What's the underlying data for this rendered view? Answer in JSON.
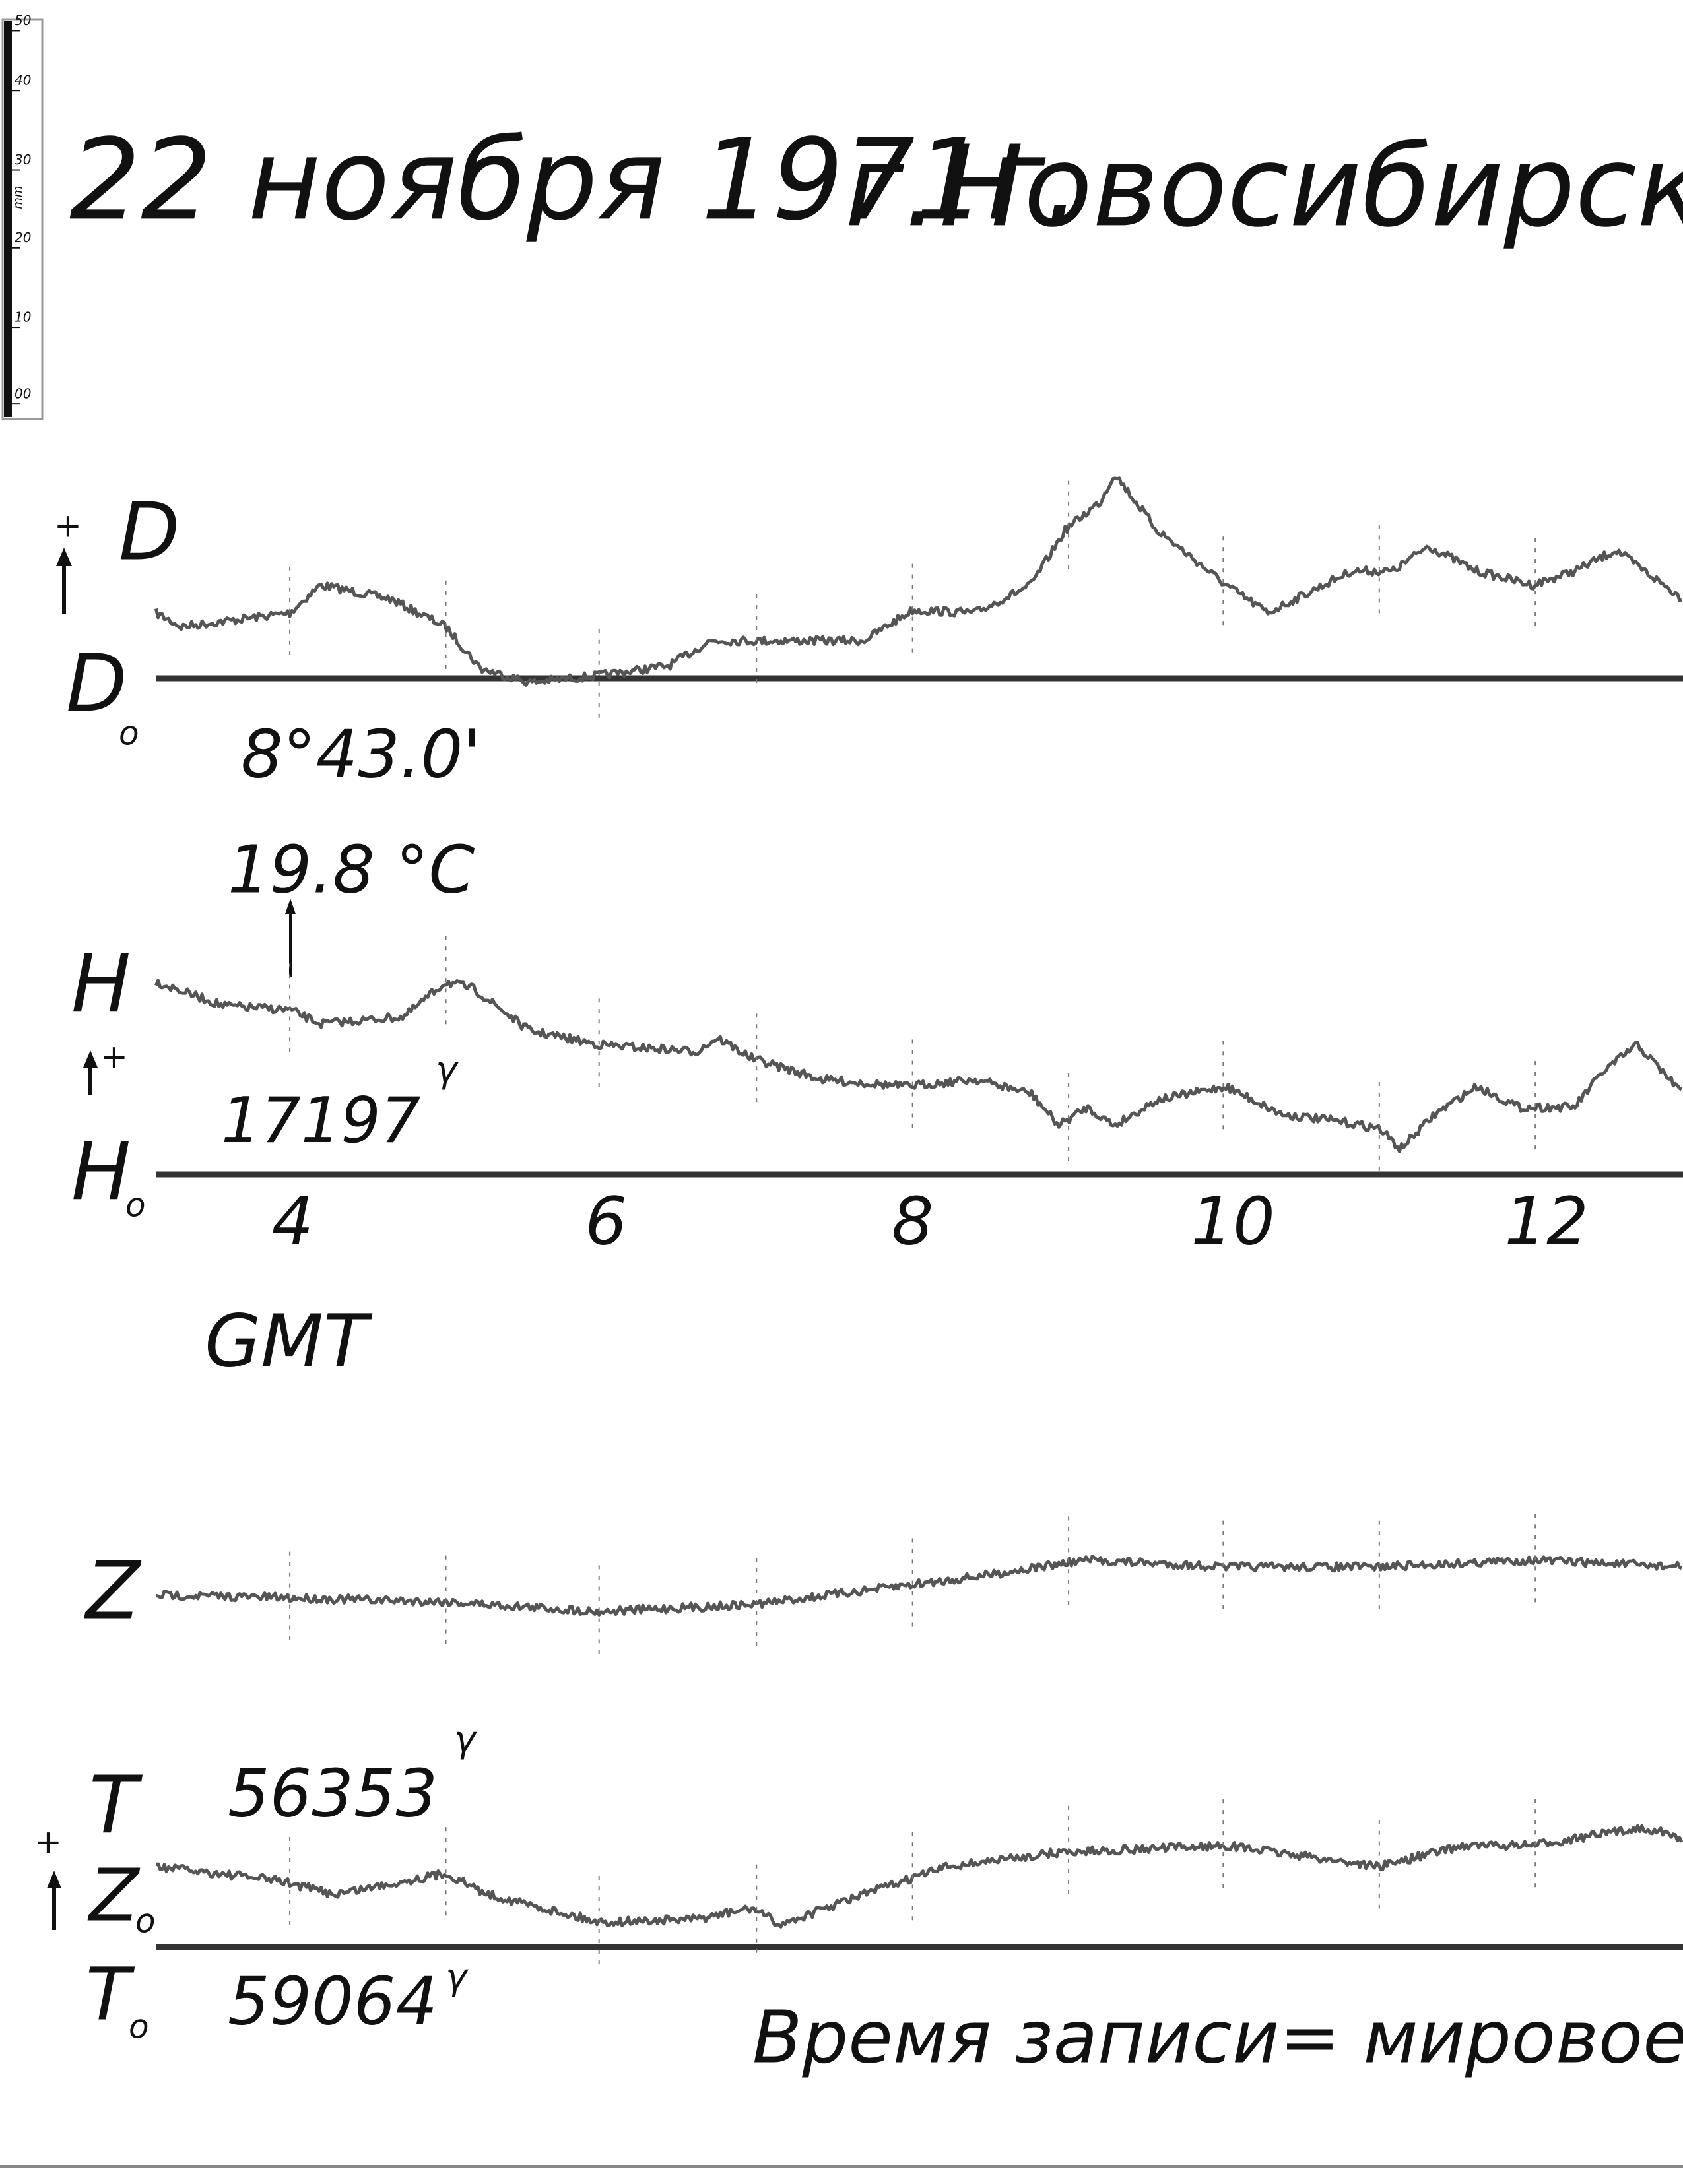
{
  "scale": {
    "ticks": [
      "50",
      "40",
      "30",
      "20",
      "10",
      "00"
    ],
    "unit": "mm"
  },
  "header": {
    "date": "22 ноября 1971г.",
    "place": "г.Новосибирск(Клн"
  },
  "d_panel": {
    "plus": "+",
    "label": "D",
    "baseline_label": "D",
    "baseline_sub": "o",
    "baseline_value": "8°43.0'"
  },
  "temperature": "19.8 °C",
  "h_panel": {
    "label": "H",
    "plus": "+",
    "baseline_label": "H",
    "baseline_sub": "o",
    "baseline_value": "17197",
    "unit": "γ"
  },
  "time_axis": {
    "ticks": [
      "4",
      "6",
      "8",
      "10",
      "12"
    ],
    "label": "GMT"
  },
  "z_panel": {
    "label": "Z"
  },
  "t_panel": {
    "label": "T",
    "value": "56353",
    "unit": "γ",
    "plus": "+",
    "z0_label": "Z",
    "z0_sub": "o",
    "t0_label": "T",
    "t0_sub": "o",
    "t0_value": "59064",
    "t0_unit": "γ"
  },
  "footer": "Время записи= мировое"
}
